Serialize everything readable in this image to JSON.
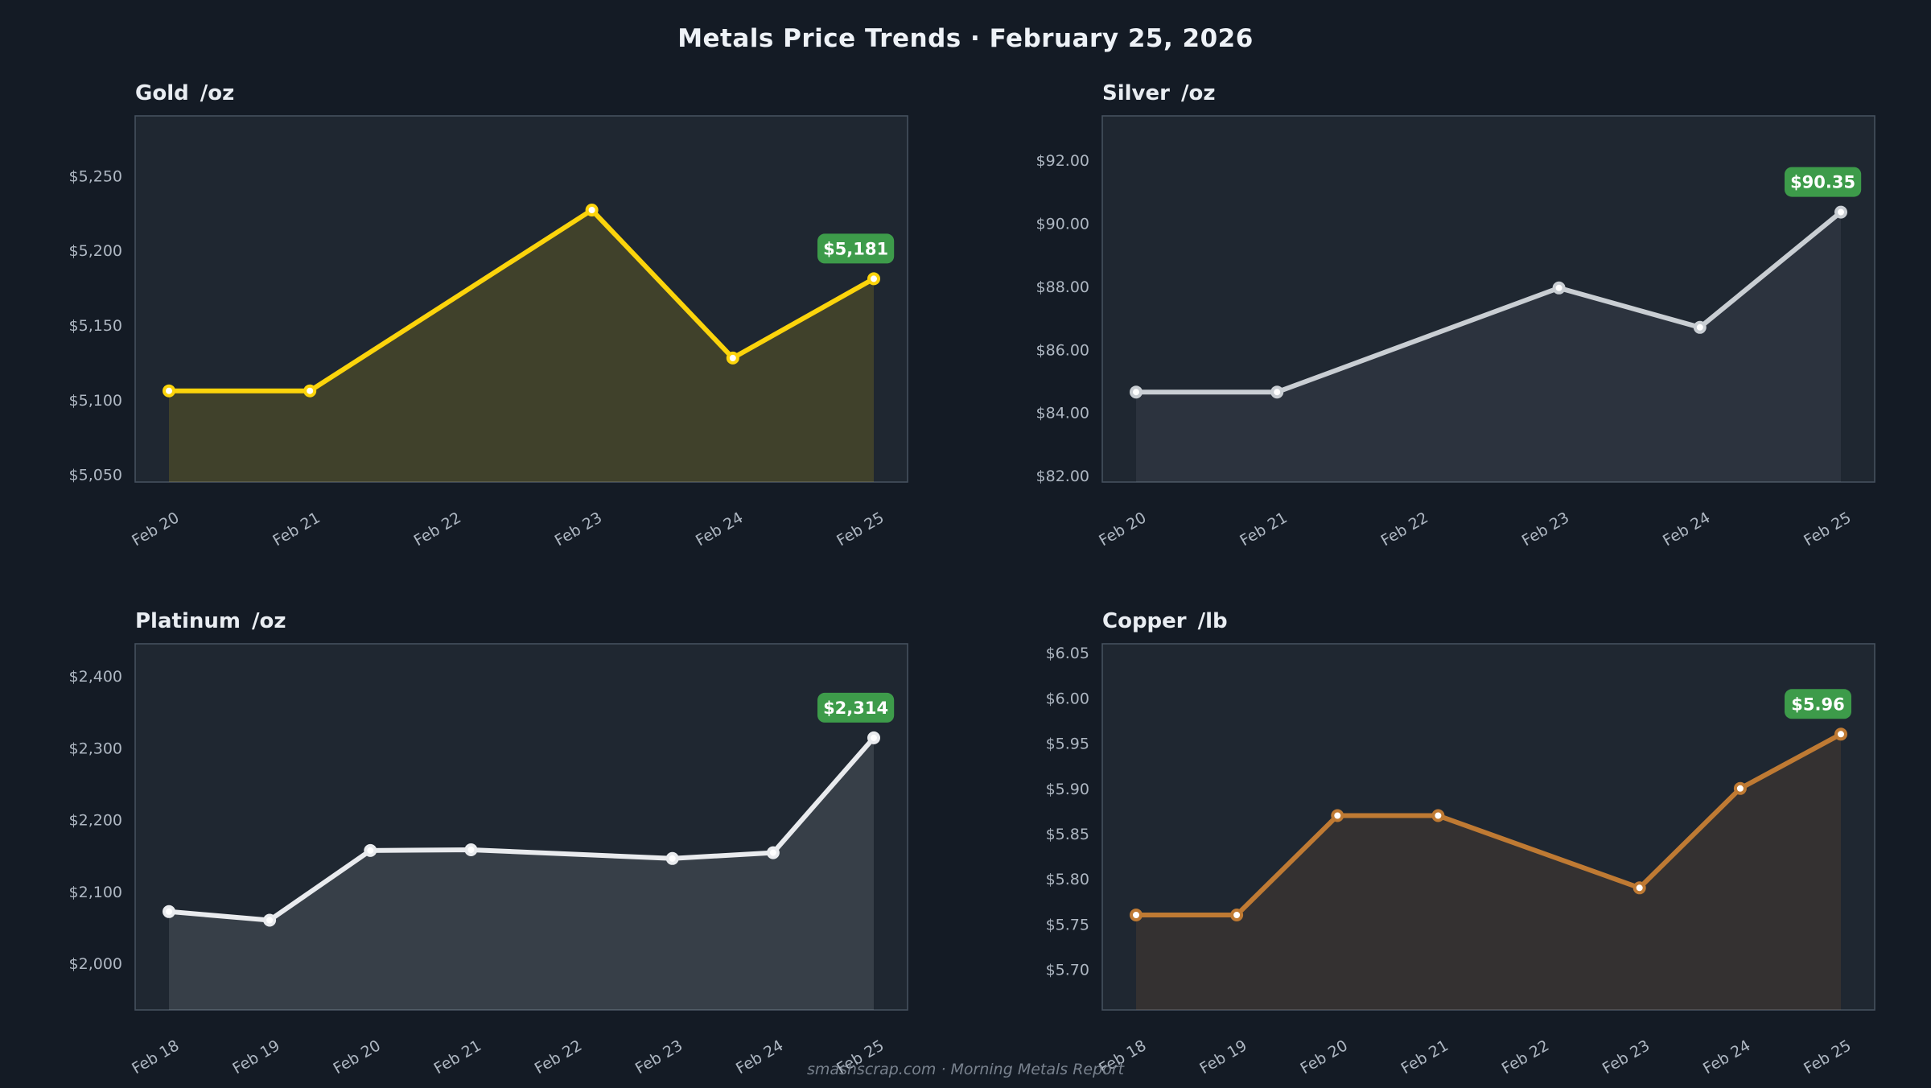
{
  "page": {
    "title": "Metals Price Trends  ·  February 25, 2026",
    "footer": "smashscrap.com  ·  Morning Metals Report",
    "colors": {
      "page_background": "#141b25",
      "plot_background": "#1f2731",
      "plot_border": "#45505e",
      "tick_text": "#aeb7c2",
      "panel_title_text": "#e9edf2",
      "badge_background": "#3d9b4a",
      "badge_text": "#ffffff"
    }
  },
  "chart_data": [
    {
      "type": "area",
      "id": "gold",
      "title": "Gold",
      "unit": "/oz",
      "line_color": "#fcd40b",
      "fill_opacity": 0.15,
      "x_ticks": [
        "Feb 20",
        "Feb 21",
        "Feb 22",
        "Feb 23",
        "Feb 24",
        "Feb 25"
      ],
      "points": [
        {
          "x": "Feb 20",
          "y": 5106
        },
        {
          "x": "Feb 21",
          "y": 5106
        },
        {
          "x": "Feb 23",
          "y": 5227
        },
        {
          "x": "Feb 24",
          "y": 5128
        },
        {
          "x": "Feb 25",
          "y": 5181
        }
      ],
      "y_ticks": [
        {
          "label": "$5,050",
          "value": 5050
        },
        {
          "label": "$5,100",
          "value": 5100
        },
        {
          "label": "$5,150",
          "value": 5150
        },
        {
          "label": "$5,200",
          "value": 5200
        },
        {
          "label": "$5,250",
          "value": 5250
        }
      ],
      "y_domain": [
        5045,
        5290
      ],
      "badge_label": "$5,181",
      "last_value": 5181
    },
    {
      "type": "area",
      "id": "silver",
      "title": "Silver",
      "unit": "/oz",
      "line_color": "#c9ced3",
      "fill_opacity": 0.08,
      "x_ticks": [
        "Feb 20",
        "Feb 21",
        "Feb 22",
        "Feb 23",
        "Feb 24",
        "Feb 25"
      ],
      "points": [
        {
          "x": "Feb 20",
          "y": 84.65
        },
        {
          "x": "Feb 21",
          "y": 84.65
        },
        {
          "x": "Feb 23",
          "y": 87.95
        },
        {
          "x": "Feb 24",
          "y": 86.7
        },
        {
          "x": "Feb 25",
          "y": 90.35
        }
      ],
      "y_ticks": [
        {
          "label": "$82.00",
          "value": 82
        },
        {
          "label": "$84.00",
          "value": 84
        },
        {
          "label": "$86.00",
          "value": 86
        },
        {
          "label": "$88.00",
          "value": 88
        },
        {
          "label": "$90.00",
          "value": 90
        },
        {
          "label": "$92.00",
          "value": 92
        }
      ],
      "y_domain": [
        81.8,
        93.4
      ],
      "badge_label": "$90.35",
      "last_value": 90.35
    },
    {
      "type": "area",
      "id": "platinum",
      "title": "Platinum",
      "unit": "/oz",
      "line_color": "#e9ebee",
      "fill_opacity": 0.12,
      "x_ticks": [
        "Feb 18",
        "Feb 19",
        "Feb 20",
        "Feb 21",
        "Feb 22",
        "Feb 23",
        "Feb 24",
        "Feb 25"
      ],
      "points": [
        {
          "x": "Feb 18",
          "y": 2072
        },
        {
          "x": "Feb 19",
          "y": 2060
        },
        {
          "x": "Feb 20",
          "y": 2157
        },
        {
          "x": "Feb 21",
          "y": 2158
        },
        {
          "x": "Feb 23",
          "y": 2146
        },
        {
          "x": "Feb 24",
          "y": 2154
        },
        {
          "x": "Feb 25",
          "y": 2314
        }
      ],
      "y_ticks": [
        {
          "label": "$2,000",
          "value": 2000
        },
        {
          "label": "$2,100",
          "value": 2100
        },
        {
          "label": "$2,200",
          "value": 2200
        },
        {
          "label": "$2,300",
          "value": 2300
        },
        {
          "label": "$2,400",
          "value": 2400
        }
      ],
      "y_domain": [
        1935,
        2445
      ],
      "badge_label": "$2,314",
      "last_value": 2314
    },
    {
      "type": "area",
      "id": "copper",
      "title": "Copper",
      "unit": "/lb",
      "line_color": "#bf7a33",
      "fill_opacity": 0.13,
      "x_ticks": [
        "Feb 18",
        "Feb 19",
        "Feb 20",
        "Feb 21",
        "Feb 22",
        "Feb 23",
        "Feb 24",
        "Feb 25"
      ],
      "points": [
        {
          "x": "Feb 18",
          "y": 5.76
        },
        {
          "x": "Feb 19",
          "y": 5.76
        },
        {
          "x": "Feb 20",
          "y": 5.87
        },
        {
          "x": "Feb 21",
          "y": 5.87
        },
        {
          "x": "Feb 23",
          "y": 5.79
        },
        {
          "x": "Feb 24",
          "y": 5.9
        },
        {
          "x": "Feb 25",
          "y": 5.96
        }
      ],
      "y_ticks": [
        {
          "label": "$5.70",
          "value": 5.7
        },
        {
          "label": "$5.75",
          "value": 5.75
        },
        {
          "label": "$5.80",
          "value": 5.8
        },
        {
          "label": "$5.85",
          "value": 5.85
        },
        {
          "label": "$5.90",
          "value": 5.9
        },
        {
          "label": "$5.95",
          "value": 5.95
        },
        {
          "label": "$6.00",
          "value": 6.0
        },
        {
          "label": "$6.05",
          "value": 6.05
        }
      ],
      "y_domain": [
        5.655,
        6.06
      ],
      "badge_label": "$5.96",
      "last_value": 5.96
    }
  ]
}
